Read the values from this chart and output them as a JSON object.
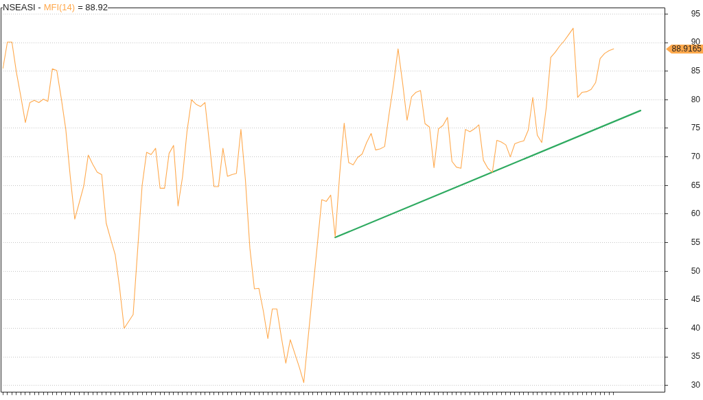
{
  "chart_data": {
    "type": "line",
    "title": "NSEASI -",
    "annotations": [
      "= 88.92",
      "88.9165"
    ],
    "categories": [
      null,
      null,
      null,
      null,
      null,
      null,
      null,
      null,
      null,
      null,
      null,
      null,
      null,
      null,
      null,
      null,
      null,
      null,
      null,
      null,
      null,
      null,
      null,
      null,
      null,
      null,
      null,
      null,
      null,
      null,
      null,
      null,
      null,
      null,
      null,
      null,
      null,
      null,
      null,
      null,
      null,
      null,
      null,
      null,
      null,
      null,
      null,
      null,
      null,
      null,
      null,
      null,
      null,
      null,
      null,
      null,
      null,
      null,
      null,
      null,
      null,
      null,
      null,
      null,
      null,
      null,
      null,
      null,
      null,
      null,
      null,
      null,
      null,
      null,
      null,
      null,
      null,
      null,
      null,
      null,
      null,
      null,
      null,
      null,
      null,
      null,
      null,
      null,
      null,
      null,
      null,
      null,
      null,
      null,
      null,
      null,
      null,
      null,
      null,
      null,
      null,
      null,
      null,
      null,
      null,
      null,
      null,
      null,
      null,
      null,
      null,
      null,
      null,
      null,
      null,
      null,
      null,
      null,
      null,
      null,
      null,
      null,
      null,
      null,
      null,
      null,
      null,
      null,
      null,
      null,
      null,
      null,
      null,
      null,
      null,
      null,
      null,
      null,
      null,
      null,
      null,
      null,
      null,
      null,
      null,
      null,
      null,
      null
    ],
    "series": [
      {
        "name": "MFI(14)",
        "color": "#ffa94d",
        "values": [
          85.5,
          90.1,
          90.1,
          84.8,
          80.5,
          76.0,
          79.5,
          79.9,
          79.5,
          80.1,
          79.7,
          85.4,
          85.1,
          80.2,
          74.8,
          66.5,
          59.1,
          62.0,
          64.9,
          70.3,
          68.7,
          67.3,
          66.9,
          58.4,
          55.6,
          52.9,
          47.0,
          40.0,
          41.2,
          42.4,
          53.7,
          65.0,
          70.8,
          70.4,
          71.5,
          64.5,
          64.5,
          70.6,
          72.0,
          61.4,
          66.5,
          74.5,
          80.0,
          79.2,
          78.8,
          79.5,
          72.3,
          64.8,
          64.8,
          71.5,
          66.6,
          66.9,
          67.1,
          74.8,
          66.0,
          54.0,
          46.9,
          47.0,
          43.0,
          38.2,
          43.4,
          43.4,
          38.5,
          33.9,
          38.0,
          35.6,
          33.2,
          30.5,
          38.6,
          46.6,
          54.5,
          62.5,
          62.2,
          63.3,
          56.0,
          67.0,
          75.9,
          69.0,
          68.6,
          69.9,
          70.5,
          72.5,
          74.1,
          71.2,
          71.4,
          71.8,
          77.5,
          82.8,
          88.9,
          83.0,
          76.4,
          80.5,
          81.3,
          81.6,
          75.8,
          75.2,
          68.1,
          74.9,
          75.5,
          76.9,
          69.2,
          68.2,
          68.0,
          74.8,
          74.4,
          74.9,
          75.6,
          69.4,
          68.0,
          67.3,
          72.9,
          72.6,
          72.1,
          70.0,
          72.3,
          72.6,
          72.8,
          74.7,
          80.4,
          73.8,
          72.5,
          78.6,
          87.4,
          88.3,
          89.4,
          90.3,
          91.4,
          92.5,
          80.4,
          81.3,
          81.4,
          81.8,
          83.0,
          87.2,
          88.1,
          88.6,
          88.9,
          null,
          null,
          null,
          null,
          null,
          null,
          null,
          null,
          null,
          null,
          null
        ]
      },
      {
        "color": "#2eaa60",
        "values": [
          null,
          null,
          null,
          null,
          null,
          null,
          null,
          null,
          null,
          null,
          null,
          null,
          null,
          null,
          null,
          null,
          null,
          null,
          null,
          null,
          null,
          null,
          null,
          null,
          null,
          null,
          null,
          null,
          null,
          null,
          null,
          null,
          null,
          null,
          null,
          null,
          null,
          null,
          null,
          null,
          null,
          null,
          null,
          null,
          null,
          null,
          null,
          null,
          null,
          null,
          null,
          null,
          null,
          null,
          null,
          null,
          null,
          null,
          null,
          null,
          null,
          null,
          null,
          null,
          null,
          null,
          null,
          null,
          null,
          null,
          null,
          null,
          null,
          null,
          55.9,
          null,
          null,
          null,
          null,
          null,
          null,
          null,
          null,
          null,
          null,
          null,
          null,
          null,
          null,
          null,
          null,
          null,
          null,
          null,
          null,
          null,
          null,
          null,
          null,
          null,
          null,
          null,
          null,
          null,
          null,
          null,
          null,
          null,
          null,
          null,
          null,
          null,
          null,
          null,
          null,
          null,
          null,
          null,
          null,
          null,
          null,
          null,
          null,
          null,
          null,
          null,
          null,
          null,
          null,
          null,
          null,
          null,
          null,
          null,
          null,
          null,
          null,
          null,
          null,
          null,
          null,
          null,
          78.1,
          null,
          null,
          null,
          null,
          null
        ]
      }
    ],
    "ylim": [
      28.8,
      96.1
    ],
    "yticks": [
      30,
      35,
      40,
      45,
      50,
      55,
      60,
      65,
      70,
      75,
      80,
      85,
      90,
      95
    ],
    "grid": "y",
    "legend": "top left",
    "marker": "none",
    "line_style": "solid",
    "tick_labels": "y"
  }
}
